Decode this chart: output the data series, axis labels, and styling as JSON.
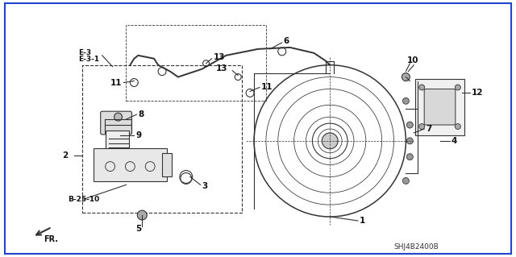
{
  "bg_color": "#ffffff",
  "title": "",
  "diagram_id": "SHJ4B2400B",
  "fig_width": 6.4,
  "fig_height": 3.19,
  "border_color": "#2222cc",
  "border_lw": 1.5
}
